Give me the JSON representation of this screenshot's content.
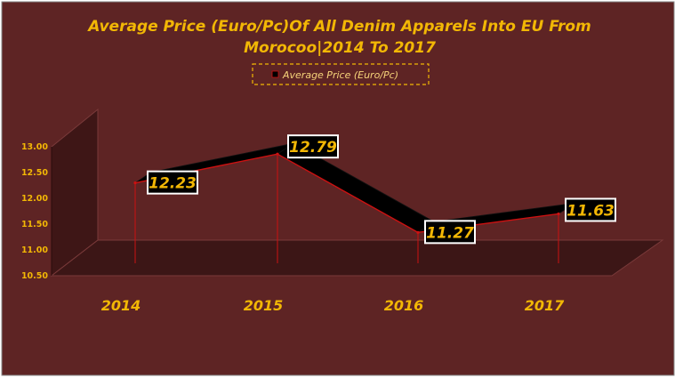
{
  "chart_data": {
    "type": "line",
    "title_lines": [
      "Average Price (Euro/Pc)Of All Denim Apparels Into EU From",
      "Morocoo|2014 To 2017"
    ],
    "categories": [
      "2014",
      "2015",
      "2016",
      "2017"
    ],
    "series": [
      {
        "name": "Average Price (Euro/Pc)",
        "values": [
          12.23,
          12.79,
          11.27,
          11.63
        ]
      }
    ],
    "data_labels": [
      "12.23",
      "12.79",
      "11.27",
      "11.63"
    ],
    "y_ticks": [
      "10.50",
      "11.00",
      "11.50",
      "12.00",
      "12.50",
      "13.00"
    ],
    "ylim": [
      10.5,
      13.0
    ],
    "legend_position": "top-center",
    "grid": false,
    "style": "3d-line"
  },
  "colors": {
    "background": "#5e2424",
    "plot_side_wall": "#3e1616",
    "floor": "#3c1616",
    "text": "#f2b705",
    "line_ribbon": "#000000",
    "ribbon_edge": "#cc1111",
    "drop_lines": "#cc1111",
    "label_box": "#000000",
    "label_border": "#ffffff"
  }
}
